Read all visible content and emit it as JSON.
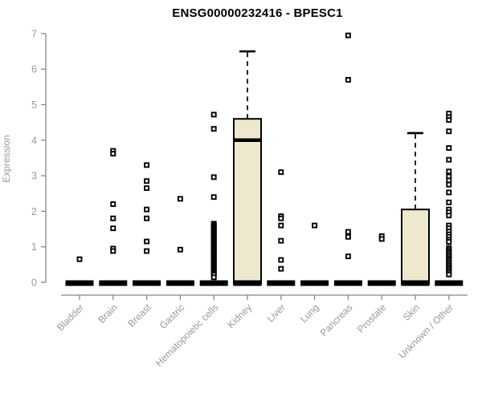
{
  "chart_data": {
    "type": "boxplot",
    "title": "ENSG00000232416 - BPESC1",
    "xlabel": "",
    "ylabel": "Expression",
    "ylim": [
      0,
      7
    ],
    "y_ticks": [
      0,
      1,
      2,
      3,
      4,
      5,
      6,
      7
    ],
    "grid": false,
    "legend": "none",
    "categories": [
      {
        "label": "Bladder",
        "box": {
          "q1": 0,
          "median": 0,
          "q3": 0,
          "whisker_low": 0,
          "whisker_high": 0
        },
        "outliers": [
          0.65
        ]
      },
      {
        "label": "Brain",
        "box": {
          "q1": 0,
          "median": 0,
          "q3": 0,
          "whisker_low": 0,
          "whisker_high": 0
        },
        "outliers": [
          3.7,
          3.62,
          2.2,
          1.8,
          1.52,
          0.95,
          0.88
        ]
      },
      {
        "label": "Breast",
        "box": {
          "q1": 0,
          "median": 0,
          "q3": 0,
          "whisker_low": 0,
          "whisker_high": 0
        },
        "outliers": [
          3.3,
          2.85,
          2.65,
          2.05,
          1.8,
          1.15,
          0.88
        ]
      },
      {
        "label": "Gastric",
        "box": {
          "q1": 0,
          "median": 0,
          "q3": 0,
          "whisker_low": 0,
          "whisker_high": 0
        },
        "outliers": [
          2.35,
          0.92
        ]
      },
      {
        "label": "Hematopoietic cells",
        "box": {
          "q1": 0,
          "median": 0,
          "q3": 0,
          "whisker_low": 0,
          "whisker_high": 0
        },
        "outliers": [
          4.72,
          4.32,
          2.96,
          2.4,
          1.65,
          1.61,
          1.57,
          1.53,
          1.49,
          1.45,
          1.41,
          1.37,
          1.33,
          1.29,
          1.25,
          1.21,
          1.17,
          1.13,
          1.09,
          1.05,
          1.01,
          0.97,
          0.93,
          0.89,
          0.85,
          0.81,
          0.77,
          0.73,
          0.69,
          0.65,
          0.61,
          0.57,
          0.53,
          0.49,
          0.45,
          0.41,
          0.37,
          0.33,
          0.29,
          0.25,
          0.21,
          0.14
        ]
      },
      {
        "label": "Kidney",
        "box": {
          "q1": 0,
          "median": 4.0,
          "q3": 4.6,
          "whisker_low": 0,
          "whisker_high": 6.5
        },
        "outliers": []
      },
      {
        "label": "Liver",
        "box": {
          "q1": 0,
          "median": 0,
          "q3": 0,
          "whisker_low": 0,
          "whisker_high": 0
        },
        "outliers": [
          3.1,
          1.86,
          1.8,
          1.6,
          1.17,
          0.63,
          0.38
        ]
      },
      {
        "label": "Lung",
        "box": {
          "q1": 0,
          "median": 0,
          "q3": 0,
          "whisker_low": 0,
          "whisker_high": 0
        },
        "outliers": [
          1.6
        ]
      },
      {
        "label": "Pancreas",
        "box": {
          "q1": 0,
          "median": 0,
          "q3": 0,
          "whisker_low": 0,
          "whisker_high": 0
        },
        "outliers": [
          6.95,
          5.7,
          1.42,
          1.28,
          0.73
        ]
      },
      {
        "label": "Prostate",
        "box": {
          "q1": 0,
          "median": 0,
          "q3": 0,
          "whisker_low": 0,
          "whisker_high": 0
        },
        "outliers": [
          1.3,
          1.22
        ]
      },
      {
        "label": "Skin",
        "box": {
          "q1": 0,
          "median": 0,
          "q3": 2.05,
          "whisker_low": 0,
          "whisker_high": 4.2
        },
        "outliers": []
      },
      {
        "label": "Unknown / Other",
        "box": {
          "q1": 0,
          "median": 0,
          "q3": 0,
          "whisker_low": 0,
          "whisker_high": 0
        },
        "outliers": [
          4.75,
          4.65,
          4.57,
          4.25,
          3.78,
          3.45,
          3.12,
          2.98,
          2.87,
          2.75,
          2.53,
          2.25,
          2.05,
          1.97,
          1.88,
          1.6,
          1.52,
          1.43,
          1.35,
          1.28,
          1.2,
          1.14,
          0.97,
          0.92,
          0.87,
          0.82,
          0.77,
          0.72,
          0.67,
          0.62,
          0.57,
          0.52,
          0.47,
          0.42,
          0.37,
          0.32,
          0.27,
          0.22
        ]
      }
    ],
    "colors": {
      "box_fill": "#ede8ce",
      "box_stroke": "#000000",
      "median": "#000000",
      "whisker": "#000000",
      "outlier": "#000000",
      "axis_line": "#878787",
      "tick_text": "#999999",
      "title_text": "#000000",
      "background": "#ffffff"
    }
  }
}
